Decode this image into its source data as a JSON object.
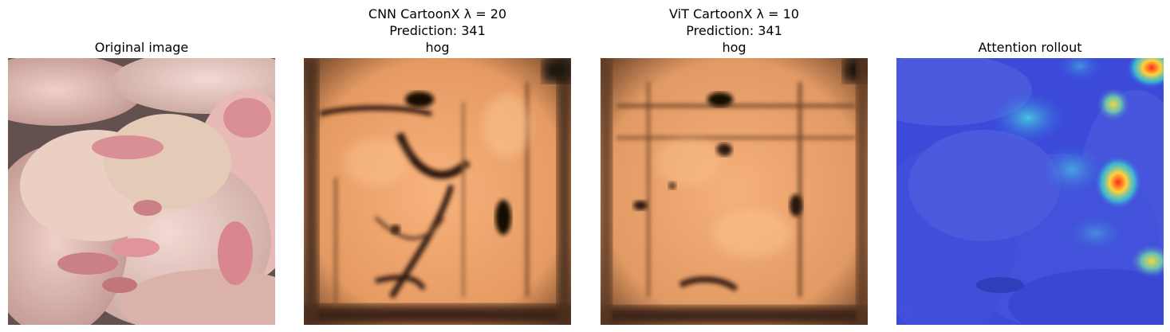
{
  "panels": [
    {
      "lines": [
        "Original image"
      ]
    },
    {
      "lines": [
        "CNN CartoonX λ = 20",
        "Prediction: 341",
        "hog"
      ]
    },
    {
      "lines": [
        "ViT CartoonX λ = 10",
        "Prediction: 341",
        "hog"
      ]
    },
    {
      "lines": [
        "Attention rollout"
      ]
    }
  ],
  "colors": {
    "background": "#ffffff",
    "cartoon_base": "#e8a06a",
    "cartoon_light": "#ffc994",
    "cartoon_dark": "#2a1a10",
    "rollout_blue": "#3a4fe0",
    "rollout_hot": "#ff2a1a"
  }
}
